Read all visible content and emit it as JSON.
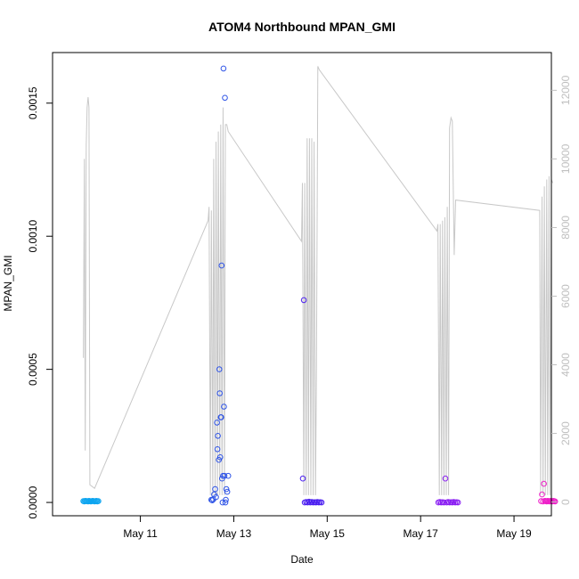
{
  "chart_data": {
    "type": "scatter",
    "title": "ATOM4 Northbound MPAN_GMI",
    "xlabel": "Date",
    "ylabel": "MPAN_GMI",
    "x_unit": "day of May",
    "xlim": [
      9.12,
      19.8
    ],
    "ylim": [
      -5e-05,
      0.00169
    ],
    "x_ticks": [
      11,
      13,
      15,
      17,
      19
    ],
    "x_tick_labels": [
      "May 11",
      "May 13",
      "May 15",
      "May 17",
      "May 19"
    ],
    "y_ticks": [
      0.0,
      0.0005,
      0.001,
      0.0015
    ],
    "y_tick_labels": [
      "0.0000",
      "0.0005",
      "0.0010",
      "0.0015"
    ],
    "y2_ticks": [
      0,
      2000,
      4000,
      6000,
      8000,
      10000,
      12000
    ],
    "y2_tick_labels": [
      "0",
      "2000",
      "4000",
      "6000",
      "8000",
      "10000",
      "12000"
    ],
    "y2lim": [
      -400,
      13100
    ],
    "grid": false,
    "legend": "none",
    "series": [
      {
        "color": "#0ea5f0",
        "x": [
          9.78,
          9.8,
          9.82,
          9.84,
          9.86,
          9.88,
          9.9,
          9.92,
          9.94,
          9.96,
          9.98,
          10.0,
          10.02,
          10.04,
          10.06,
          10.08,
          10.1
        ],
        "y": [
          5e-06,
          4e-06,
          6e-06,
          5e-06,
          5e-06,
          4e-06,
          6e-06,
          5e-06,
          4e-06,
          5e-06,
          6e-06,
          5e-06,
          4e-06,
          5e-06,
          6e-06,
          4e-06,
          5e-06
        ]
      },
      {
        "color": "#2f54e6",
        "x": [
          12.52,
          12.54,
          12.56,
          12.58,
          12.6,
          12.62,
          12.64,
          12.65,
          12.66,
          12.68,
          12.69,
          12.7,
          12.71,
          12.72,
          12.73,
          12.74,
          12.75,
          12.76,
          12.77,
          12.78,
          12.79,
          12.8,
          12.81,
          12.82,
          12.83,
          12.84,
          12.86,
          12.88
        ],
        "y": [
          1e-05,
          8e-06,
          1.2e-05,
          3e-05,
          5e-05,
          2e-05,
          0.0003,
          0.0002,
          0.00025,
          0.00016,
          0.0005,
          0.00041,
          0.00017,
          0.00032,
          0.00032,
          0.00089,
          9e-05,
          0.0,
          0.0001,
          0.00163,
          0.00036,
          0.0001,
          0.00152,
          0.0,
          1e-05,
          5e-05,
          4e-05,
          0.0001
        ]
      },
      {
        "color": "#4b1ff0",
        "x": [
          14.48,
          14.5,
          14.52,
          14.55,
          14.58,
          14.61,
          14.64,
          14.67,
          14.7,
          14.73,
          14.76,
          14.79,
          14.82,
          14.85,
          14.88
        ],
        "y": [
          9e-05,
          0.00076,
          0.0,
          2e-06,
          0.0,
          3e-06,
          0.0,
          2e-06,
          0.0,
          1e-06,
          0.0,
          2e-06,
          0.0,
          1e-06,
          0.0
        ]
      },
      {
        "color": "#8a1ff2",
        "x": [
          17.38,
          17.41,
          17.44,
          17.47,
          17.5,
          17.53,
          17.56,
          17.59,
          17.62,
          17.65,
          17.68,
          17.71,
          17.74,
          17.77,
          17.8
        ],
        "y": [
          0.0,
          2e-06,
          0.0,
          1e-06,
          0.0,
          9e-05,
          0.0,
          2e-06,
          0.0,
          1e-06,
          0.0,
          2e-06,
          0.0,
          1e-06,
          0.0
        ]
      },
      {
        "color": "#ee1fc8",
        "x": [
          19.58,
          19.6,
          19.62,
          19.64,
          19.66,
          19.68,
          19.7,
          19.72,
          19.74,
          19.76,
          19.78,
          19.8,
          19.82,
          19.84,
          19.86,
          19.88
        ],
        "y": [
          5e-06,
          3e-05,
          4e-06,
          7e-05,
          6e-06,
          5e-06,
          4e-06,
          6e-06,
          5e-06,
          4e-06,
          6e-06,
          5e-06,
          4e-06,
          6e-06,
          5e-06,
          4e-06
        ]
      }
    ],
    "secondary_series": {
      "color": "#c8c8c8",
      "x": [
        9.78,
        9.8,
        9.82,
        9.84,
        9.86,
        9.88,
        9.9,
        9.92,
        10.02,
        12.45,
        12.47,
        12.5,
        12.52,
        12.55,
        12.57,
        12.6,
        12.62,
        12.65,
        12.67,
        12.7,
        12.72,
        12.75,
        12.77,
        12.8,
        12.82,
        12.85,
        12.88,
        14.45,
        14.47,
        14.5,
        14.52,
        14.55,
        14.57,
        14.6,
        14.62,
        14.65,
        14.67,
        14.7,
        14.72,
        14.75,
        14.77,
        14.8,
        14.83,
        17.35,
        17.37,
        17.4,
        17.42,
        17.45,
        17.47,
        17.5,
        17.52,
        17.55,
        17.57,
        17.6,
        17.62,
        17.65,
        17.68,
        17.72,
        17.75,
        19.55,
        19.57,
        19.6,
        19.62,
        19.65,
        19.67,
        19.7,
        19.72,
        19.75,
        19.77,
        19.8,
        19.83
      ],
      "y": [
        4200,
        10000,
        1500,
        10400,
        11500,
        11800,
        11500,
        500,
        400,
        8200,
        8600,
        200,
        8500,
        200,
        10000,
        200,
        10500,
        200,
        10800,
        200,
        11000,
        200,
        11500,
        200,
        11000,
        11000,
        10800,
        7600,
        9300,
        200,
        9300,
        200,
        10600,
        200,
        10600,
        200,
        10600,
        200,
        10500,
        200,
        4000,
        12700,
        12600,
        7900,
        8100,
        200,
        8100,
        200,
        8200,
        200,
        8300,
        200,
        8600,
        200,
        10900,
        11200,
        11100,
        7200,
        8800,
        8500,
        200,
        8900,
        200,
        9200,
        200,
        9400,
        200,
        9500,
        200,
        9400,
        9300
      ]
    }
  }
}
